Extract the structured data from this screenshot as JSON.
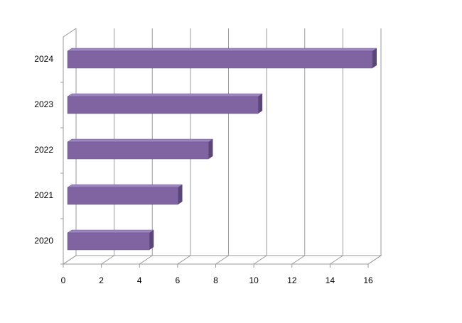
{
  "chart_data": {
    "type": "bar3d",
    "orientation": "horizontal",
    "categories": [
      "2020",
      "2021",
      "2022",
      "2023",
      "2024"
    ],
    "values": [
      4.3,
      5.8,
      7.4,
      10,
      16
    ],
    "color": "#8064a2",
    "xlim": [
      0,
      16
    ],
    "xticks": [
      0,
      2,
      4,
      6,
      8,
      10,
      12,
      14,
      16
    ],
    "grid": true
  }
}
